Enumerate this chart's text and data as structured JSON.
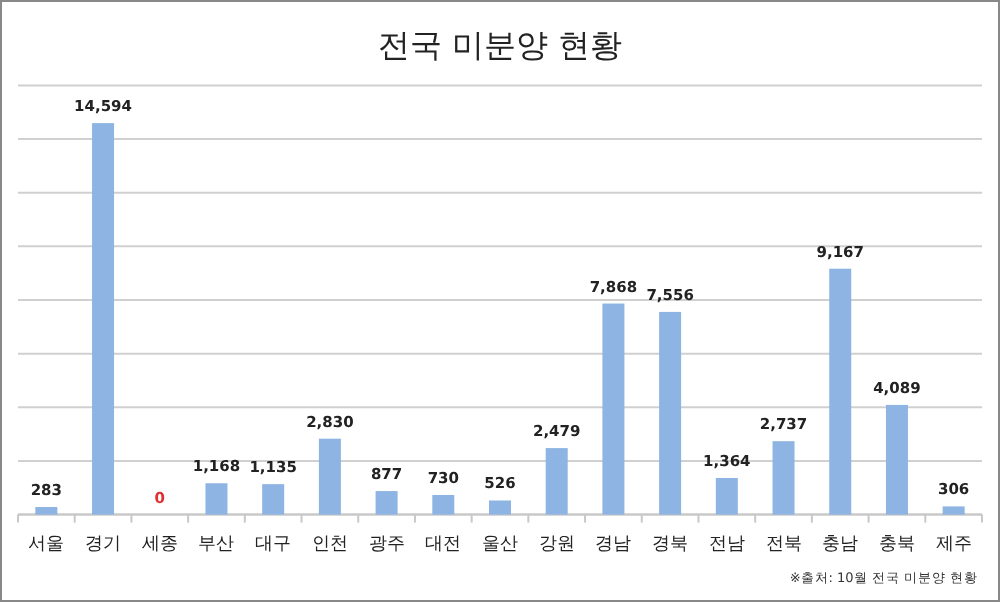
{
  "chart_data": {
    "type": "bar",
    "title": "전국 미분양 현황",
    "categories": [
      "서울",
      "경기",
      "세종",
      "부산",
      "대구",
      "인천",
      "광주",
      "대전",
      "울산",
      "강원",
      "경남",
      "경북",
      "전남",
      "전북",
      "충남",
      "충북",
      "제주"
    ],
    "values": [
      283,
      14594,
      0,
      1168,
      1135,
      2830,
      877,
      730,
      526,
      2479,
      7868,
      7556,
      1364,
      2737,
      9167,
      4089,
      306
    ],
    "color": "#8db4e2",
    "ylim": [
      0,
      16000
    ],
    "yticks": [
      {
        "value": 0,
        "label": null
      },
      {
        "value": 2000,
        "label": null
      },
      {
        "value": 4000,
        "label": null
      },
      {
        "value": 6000,
        "label": null
      },
      {
        "value": 8000,
        "label": null
      },
      {
        "value": 10000,
        "label": null
      },
      {
        "value": 12000,
        "label": null
      },
      {
        "value": 14000,
        "label": null
      },
      {
        "value": 16000,
        "label": null
      }
    ],
    "value_labels": [
      "283",
      "14,594",
      "0",
      "1,168",
      "1,135",
      "2,830",
      "877",
      "730",
      "526",
      "2,479",
      "7,868",
      "7,556",
      "1,364",
      "2,737",
      "9,167",
      "4,089",
      "306"
    ],
    "tick_labels": "x",
    "grid": "y",
    "annotations": [
      "※출처: 10월 전국 미분양 현황"
    ]
  }
}
